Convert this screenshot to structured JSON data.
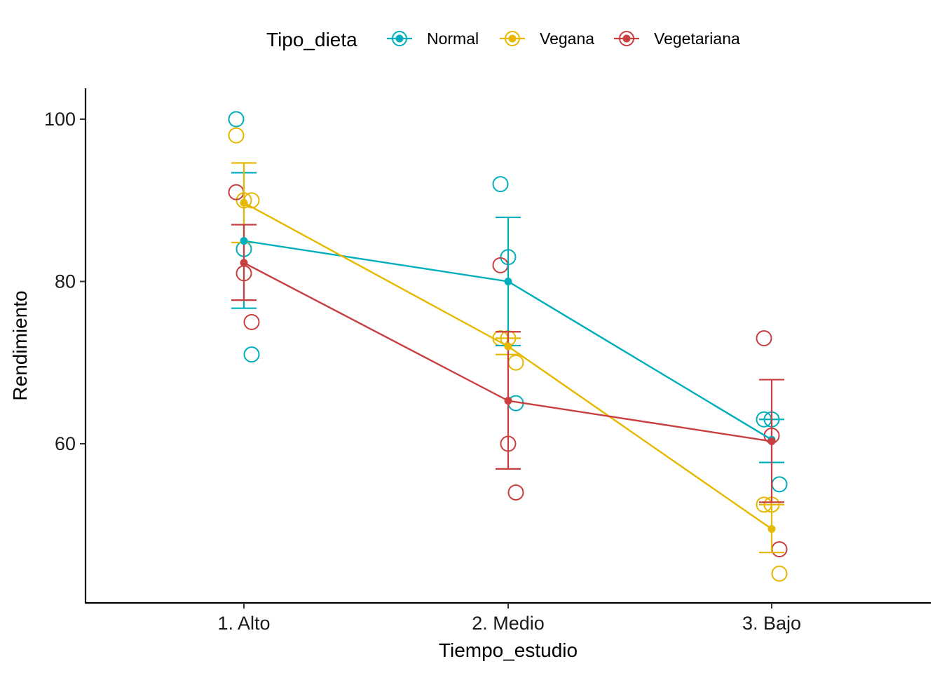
{
  "chart_data": {
    "type": "line",
    "xlabel": "Tiempo_estudio",
    "ylabel": "Rendimiento",
    "categories": [
      "1. Alto",
      "2. Medio",
      "3. Bajo"
    ],
    "yticks": [
      60,
      80,
      100
    ],
    "ylim": [
      44,
      104
    ],
    "grid": false,
    "legend": {
      "title": "Tipo_dieta",
      "position": "top"
    },
    "series": [
      {
        "name": "Normal",
        "color": "#00AFBB",
        "means": [
          85,
          80,
          60.5
        ],
        "error_low": [
          76.7,
          72.1,
          57.7
        ],
        "error_high": [
          93.4,
          87.9,
          63
        ],
        "observations": [
          [
            100,
            84,
            71
          ],
          [
            92,
            83,
            65
          ],
          [
            63,
            63,
            55
          ]
        ]
      },
      {
        "name": "Vegana",
        "color": "#E7B800",
        "means": [
          89.7,
          72,
          49.5
        ],
        "error_low": [
          84.8,
          71,
          46.6
        ],
        "error_high": [
          94.6,
          73,
          52.5
        ],
        "observations": [
          [
            98,
            90,
            90
          ],
          [
            73,
            73,
            70
          ],
          [
            52.5,
            52.5,
            44
          ]
        ]
      },
      {
        "name": "Vegetariana",
        "color": "#C93F3F",
        "means": [
          82.3,
          65.3,
          60.3
        ],
        "error_low": [
          77.7,
          56.9,
          52.8
        ],
        "error_high": [
          87,
          73.8,
          67.9
        ],
        "observations": [
          [
            91,
            81,
            75
          ],
          [
            82,
            60,
            54
          ],
          [
            73,
            61,
            47
          ]
        ]
      }
    ]
  }
}
